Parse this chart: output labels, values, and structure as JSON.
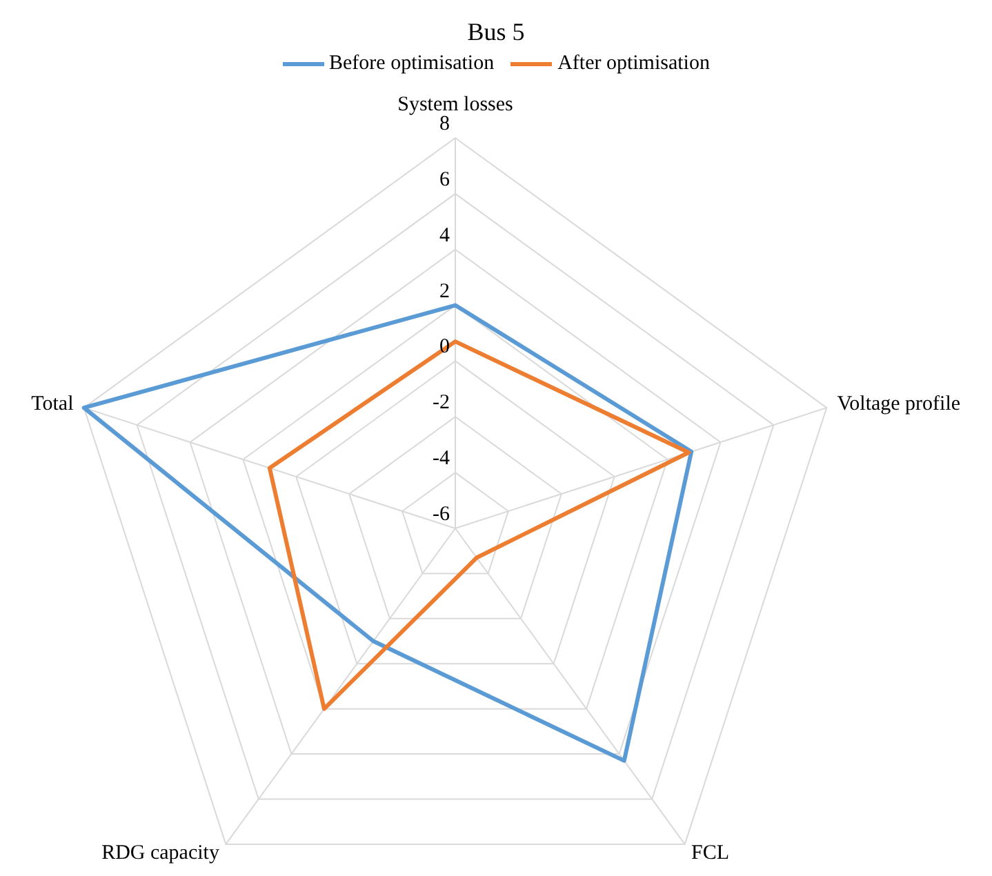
{
  "chart_data": {
    "type": "radar",
    "title": "Bus 5",
    "categories": [
      "System losses",
      "Voltage profile",
      "FCL",
      "RDG capacity",
      "Total"
    ],
    "series": [
      {
        "name": "Before optimisation",
        "color": "#5b9bd5",
        "values": [
          2,
          2.9,
          4.3,
          -1,
          8
        ]
      },
      {
        "name": "After optimisation",
        "color": "#ed7d31",
        "values": [
          0.7,
          2.8,
          -4.7,
          2,
          1
        ]
      }
    ],
    "ylim": [
      -6,
      8
    ],
    "yticks": [
      -6,
      -4,
      -2,
      0,
      2,
      4,
      6,
      8
    ],
    "grid": true,
    "legend": "top",
    "marker": "none"
  }
}
